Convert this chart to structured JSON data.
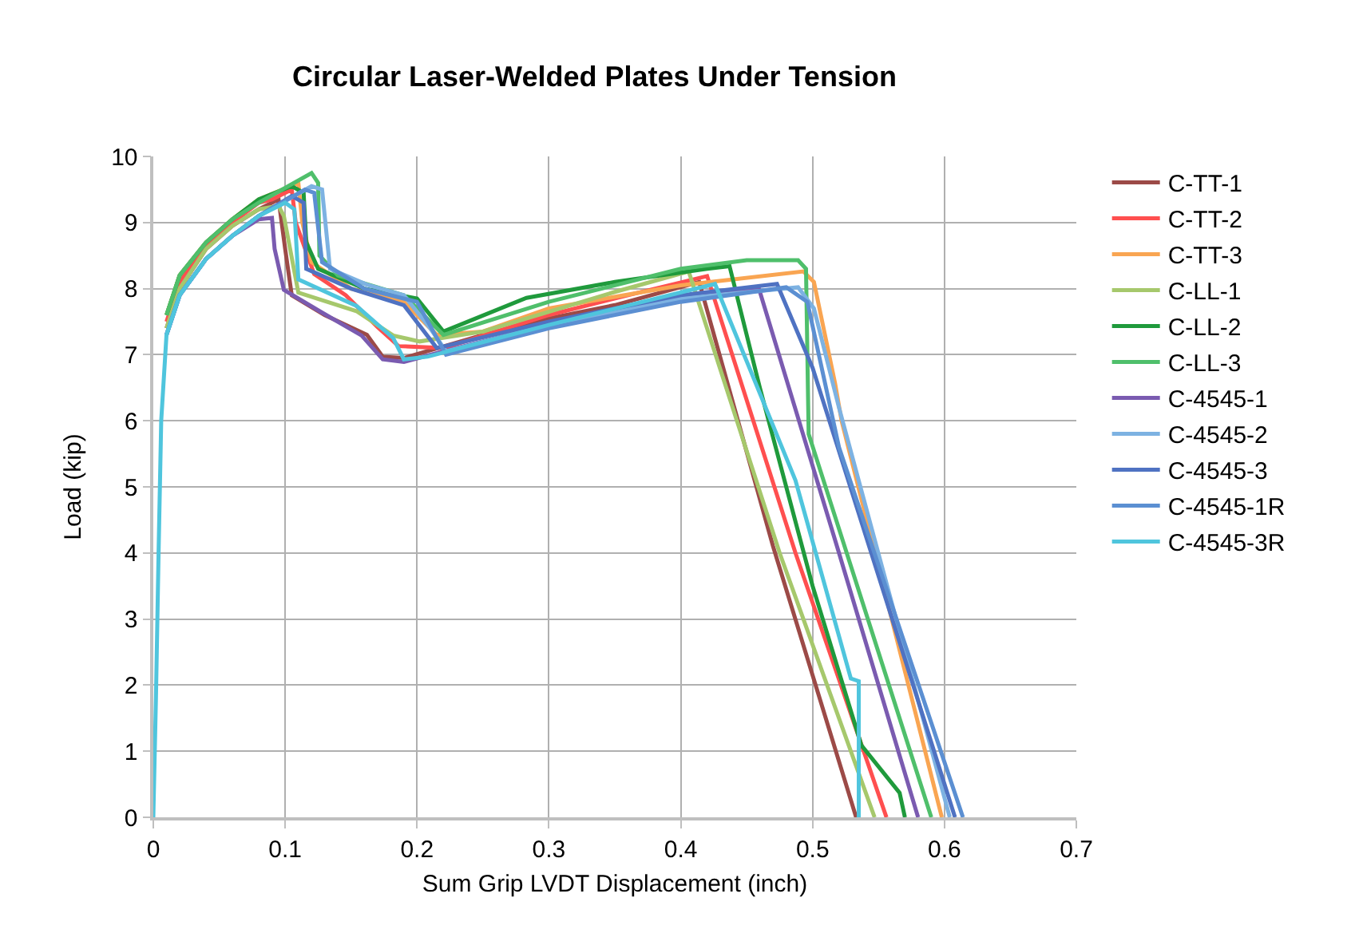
{
  "chart_data": {
    "type": "line",
    "title": "Circular Laser-Welded Plates Under Tension",
    "xlabel": "Sum Grip LVDT Displacement (inch)",
    "ylabel": "Load (kip)",
    "xlim": [
      0,
      0.7
    ],
    "xticks": [
      0,
      0.1,
      0.2,
      0.3,
      0.4,
      0.5,
      0.6,
      0.7
    ],
    "ylim": [
      0,
      10
    ],
    "yticks": [
      0,
      1,
      2,
      3,
      4,
      5,
      6,
      7,
      8,
      9,
      10
    ],
    "grid": true,
    "legend": "right",
    "marker": "none",
    "line_style": "solid",
    "series": [
      {
        "name": "C-TT-1",
        "color": "#9c4a47",
        "x": [
          0.01,
          0.02,
          0.04,
          0.06,
          0.08,
          0.09,
          0.095,
          0.1,
          0.105,
          0.13,
          0.162,
          0.174,
          0.19,
          0.25,
          0.3,
          0.35,
          0.414,
          0.47,
          0.533
        ],
        "values": [
          7.4,
          8.0,
          8.6,
          8.95,
          9.2,
          9.3,
          9.35,
          8.6,
          7.9,
          7.6,
          7.3,
          6.97,
          6.95,
          7.3,
          7.55,
          7.75,
          8.1,
          4.1,
          0
        ]
      },
      {
        "name": "C-TT-2",
        "color": "#ff4f4f",
        "x": [
          0.01,
          0.02,
          0.04,
          0.06,
          0.08,
          0.09,
          0.105,
          0.108,
          0.122,
          0.146,
          0.17,
          0.186,
          0.22,
          0.3,
          0.36,
          0.42,
          0.487,
          0.556
        ],
        "values": [
          7.5,
          8.1,
          8.65,
          9.0,
          9.3,
          9.35,
          9.5,
          9.0,
          8.22,
          7.9,
          7.42,
          7.13,
          7.1,
          7.6,
          7.9,
          8.19,
          4.0,
          0
        ]
      },
      {
        "name": "C-TT-3",
        "color": "#f9a552",
        "x": [
          0.01,
          0.02,
          0.04,
          0.06,
          0.08,
          0.11,
          0.113,
          0.12,
          0.15,
          0.19,
          0.215,
          0.25,
          0.3,
          0.4,
          0.493,
          0.501,
          0.517,
          0.522,
          0.598
        ],
        "values": [
          7.6,
          8.2,
          8.7,
          9.05,
          9.35,
          9.6,
          9.0,
          8.4,
          8.0,
          7.8,
          7.3,
          7.35,
          7.7,
          8.05,
          8.26,
          8.1,
          6.57,
          6.0,
          0
        ]
      },
      {
        "name": "C-LL-1",
        "color": "#a6c86c",
        "x": [
          0.01,
          0.02,
          0.04,
          0.06,
          0.08,
          0.095,
          0.099,
          0.11,
          0.154,
          0.182,
          0.202,
          0.25,
          0.3,
          0.35,
          0.406,
          0.475,
          0.547
        ],
        "values": [
          7.4,
          8.0,
          8.6,
          8.95,
          9.2,
          9.25,
          9.1,
          7.94,
          7.66,
          7.29,
          7.2,
          7.35,
          7.65,
          7.95,
          8.26,
          4.0,
          0
        ]
      },
      {
        "name": "C-LL-2",
        "color": "#1f9a3c",
        "x": [
          0.01,
          0.02,
          0.04,
          0.06,
          0.08,
          0.105,
          0.114,
          0.116,
          0.125,
          0.16,
          0.2,
          0.22,
          0.283,
          0.35,
          0.42,
          0.437,
          0.46,
          0.5,
          0.537,
          0.566,
          0.57
        ],
        "values": [
          7.6,
          8.2,
          8.7,
          9.05,
          9.35,
          9.55,
          9.45,
          8.7,
          8.3,
          8.0,
          7.85,
          7.35,
          7.86,
          8.1,
          8.3,
          8.34,
          6.5,
          3.5,
          1.09,
          0.37,
          0
        ]
      },
      {
        "name": "C-LL-3",
        "color": "#4fbf6b",
        "x": [
          0.01,
          0.02,
          0.04,
          0.06,
          0.08,
          0.12,
          0.125,
          0.126,
          0.14,
          0.19,
          0.22,
          0.3,
          0.4,
          0.45,
          0.489,
          0.495,
          0.497,
          0.59
        ],
        "values": [
          7.6,
          8.2,
          8.7,
          9.05,
          9.3,
          9.75,
          9.6,
          8.5,
          8.2,
          7.9,
          7.3,
          7.8,
          8.3,
          8.43,
          8.43,
          8.3,
          5.8,
          0
        ]
      },
      {
        "name": "C-4545-1",
        "color": "#7a5bb0",
        "x": [
          0.01,
          0.02,
          0.04,
          0.06,
          0.08,
          0.09,
          0.092,
          0.099,
          0.126,
          0.158,
          0.174,
          0.19,
          0.22,
          0.3,
          0.4,
          0.459,
          0.52,
          0.58
        ],
        "values": [
          7.3,
          7.9,
          8.45,
          8.8,
          9.05,
          9.07,
          8.6,
          7.98,
          7.66,
          7.29,
          6.93,
          6.89,
          7.05,
          7.45,
          7.85,
          8.02,
          4.0,
          0
        ]
      },
      {
        "name": "C-4545-2",
        "color": "#7db2e2",
        "x": [
          0.01,
          0.02,
          0.04,
          0.06,
          0.08,
          0.12,
          0.128,
          0.134,
          0.162,
          0.19,
          0.21,
          0.222,
          0.3,
          0.4,
          0.489,
          0.501,
          0.52,
          0.604
        ],
        "values": [
          7.3,
          7.9,
          8.45,
          8.8,
          9.1,
          9.55,
          9.5,
          8.3,
          8.06,
          7.9,
          7.4,
          7.05,
          7.45,
          7.85,
          8.02,
          7.7,
          6.2,
          0
        ]
      },
      {
        "name": "C-4545-3",
        "color": "#4f72c2",
        "x": [
          0.01,
          0.02,
          0.04,
          0.06,
          0.08,
          0.105,
          0.114,
          0.116,
          0.15,
          0.19,
          0.215,
          0.3,
          0.4,
          0.473,
          0.5,
          0.608
        ],
        "values": [
          7.3,
          7.9,
          8.45,
          8.8,
          9.1,
          9.4,
          9.3,
          8.3,
          8.0,
          7.75,
          7.1,
          7.5,
          7.9,
          8.07,
          6.8,
          0
        ]
      },
      {
        "name": "C-4545-1R",
        "color": "#5b8fd2",
        "x": [
          0.01,
          0.02,
          0.04,
          0.06,
          0.08,
          0.115,
          0.122,
          0.128,
          0.16,
          0.2,
          0.222,
          0.3,
          0.4,
          0.48,
          0.496,
          0.52,
          0.614
        ],
        "values": [
          7.3,
          7.9,
          8.45,
          8.8,
          9.1,
          9.5,
          9.45,
          8.4,
          8.0,
          7.8,
          7.0,
          7.4,
          7.8,
          8.02,
          7.8,
          5.6,
          0
        ]
      },
      {
        "name": "C-4545-3R",
        "color": "#4fc5dd",
        "x": [
          0,
          0.002,
          0.004,
          0.006,
          0.01,
          0.02,
          0.04,
          0.06,
          0.08,
          0.1,
          0.107,
          0.11,
          0.154,
          0.182,
          0.19,
          0.208,
          0.3,
          0.426,
          0.487,
          0.529,
          0.535,
          0.535
        ],
        "values": [
          0,
          1.8,
          4,
          6,
          7.3,
          7.9,
          8.45,
          8.8,
          9.1,
          9.3,
          9.2,
          8.14,
          7.74,
          7.25,
          6.93,
          6.97,
          7.45,
          8.07,
          5.1,
          2.1,
          2.06,
          0
        ]
      }
    ]
  }
}
